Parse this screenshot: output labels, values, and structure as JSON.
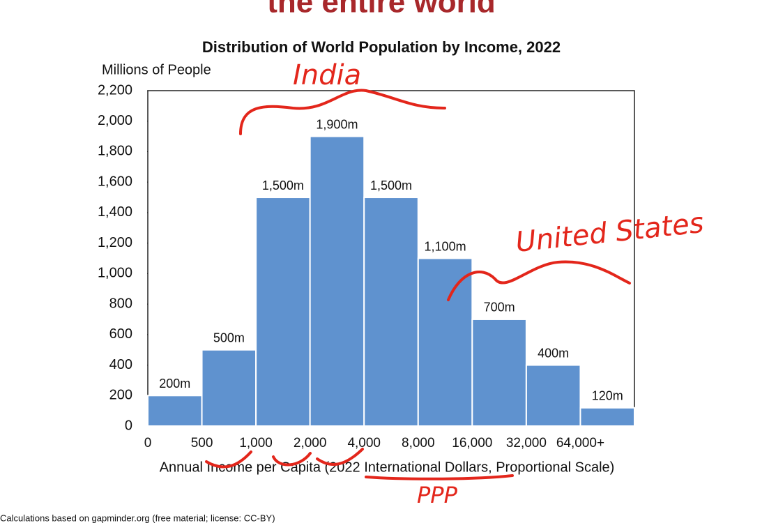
{
  "slide_title": "the entire world",
  "chart_data": {
    "type": "bar",
    "title": "Distribution  of World  Population  by Income,  2022",
    "y_label": "Millions of People",
    "x_label": "Annual  Income per Capita  (2022 International  Dollars, Proportional Scale)",
    "bin_edge_labels": [
      "0",
      "500",
      "1,000",
      "2,000",
      "4,000",
      "8,000",
      "16,000",
      "32,000",
      "64,000+",
      null
    ],
    "values": [
      200,
      500,
      1500,
      1900,
      1500,
      1100,
      700,
      400,
      120
    ],
    "value_labels": [
      "200m",
      "500m",
      "1,500m",
      "1,900m",
      "1,500m",
      "1,100m",
      "700m",
      "400m",
      "120m"
    ],
    "color": "#5f92cf",
    "ylim": [
      0,
      2200
    ],
    "yticks": [
      0,
      200,
      400,
      600,
      800,
      {
        "value": 1000,
        "label": "1,000"
      },
      {
        "value": 1200,
        "label": "1,200"
      },
      {
        "value": 1400,
        "label": "1,400"
      },
      {
        "value": 1600,
        "label": "1,600"
      },
      {
        "value": 1800,
        "label": "1,800"
      },
      {
        "value": 2000,
        "label": "2,000"
      },
      {
        "value": 2200,
        "label": "2,200"
      }
    ]
  },
  "annotations": [
    "India",
    "United States",
    "PPP"
  ],
  "source": "Calculations based on gapminder.org (free material; license: CC-BY)"
}
